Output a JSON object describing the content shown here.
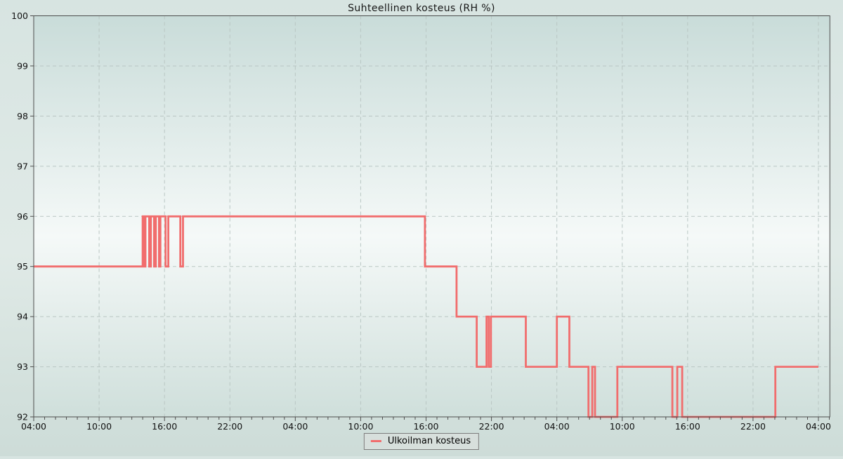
{
  "title": "Suhteellinen kosteus (RH %)",
  "legend": {
    "items": [
      {
        "label": "Ulkoilman kosteus",
        "color": "#f16d6d"
      }
    ]
  },
  "colors": {
    "line": "#f16d6d",
    "axis": "#4d4d4d",
    "grid": "#b9c6c3",
    "tick_label": "#111111",
    "plot_bg_gradient": [
      "#c9dcd9",
      "#f5f9f8",
      "#cfdfdb"
    ],
    "legend_bg": "#d7dfdc",
    "legend_border": "#7d7d7d"
  },
  "chart_data": {
    "type": "line",
    "subtype": "step-after",
    "title": "Suhteellinen kosteus (RH %)",
    "xlabel": "",
    "ylabel": "",
    "ylim": [
      92,
      100
    ],
    "xlim_hours": [
      0,
      73.05
    ],
    "grid": "dashed",
    "legend_position": "bottom-center",
    "y_ticks": [
      92,
      93,
      94,
      95,
      96,
      97,
      98,
      99,
      100
    ],
    "x_minor_tick_every_hours": 1,
    "x_major_ticks": [
      {
        "t": 0,
        "label": "04:00"
      },
      {
        "t": 6,
        "label": "10:00"
      },
      {
        "t": 12,
        "label": "16:00"
      },
      {
        "t": 18,
        "label": "22:00"
      },
      {
        "t": 24,
        "label": "04:00"
      },
      {
        "t": 30,
        "label": "10:00"
      },
      {
        "t": 36,
        "label": "16:00"
      },
      {
        "t": 42,
        "label": "22:00"
      },
      {
        "t": 48,
        "label": "04:00"
      },
      {
        "t": 54,
        "label": "10:00"
      },
      {
        "t": 60,
        "label": "16:00"
      },
      {
        "t": 66,
        "label": "22:00"
      },
      {
        "t": 72,
        "label": "04:00"
      }
    ],
    "series": [
      {
        "name": "Ulkoilman kosteus",
        "color": "#f16d6d",
        "unit": "RH %",
        "points_t_hours_value": [
          [
            0,
            95
          ],
          [
            10.0,
            96
          ],
          [
            10.15,
            95
          ],
          [
            10.25,
            96
          ],
          [
            10.6,
            95
          ],
          [
            10.75,
            96
          ],
          [
            11.05,
            95
          ],
          [
            11.2,
            96
          ],
          [
            11.5,
            95
          ],
          [
            11.62,
            96
          ],
          [
            12.1,
            95
          ],
          [
            12.35,
            96
          ],
          [
            13.45,
            95
          ],
          [
            13.7,
            96
          ],
          [
            35.9,
            95
          ],
          [
            38.8,
            94
          ],
          [
            40.65,
            93
          ],
          [
            41.55,
            94
          ],
          [
            41.75,
            93
          ],
          [
            41.95,
            94
          ],
          [
            45.15,
            93
          ],
          [
            48.0,
            94
          ],
          [
            49.15,
            93
          ],
          [
            50.9,
            92
          ],
          [
            51.25,
            93
          ],
          [
            51.5,
            92
          ],
          [
            53.55,
            93
          ],
          [
            58.6,
            92
          ],
          [
            59.05,
            93
          ],
          [
            59.5,
            92
          ],
          [
            68.05,
            93
          ],
          [
            72.0,
            93
          ]
        ]
      }
    ]
  }
}
